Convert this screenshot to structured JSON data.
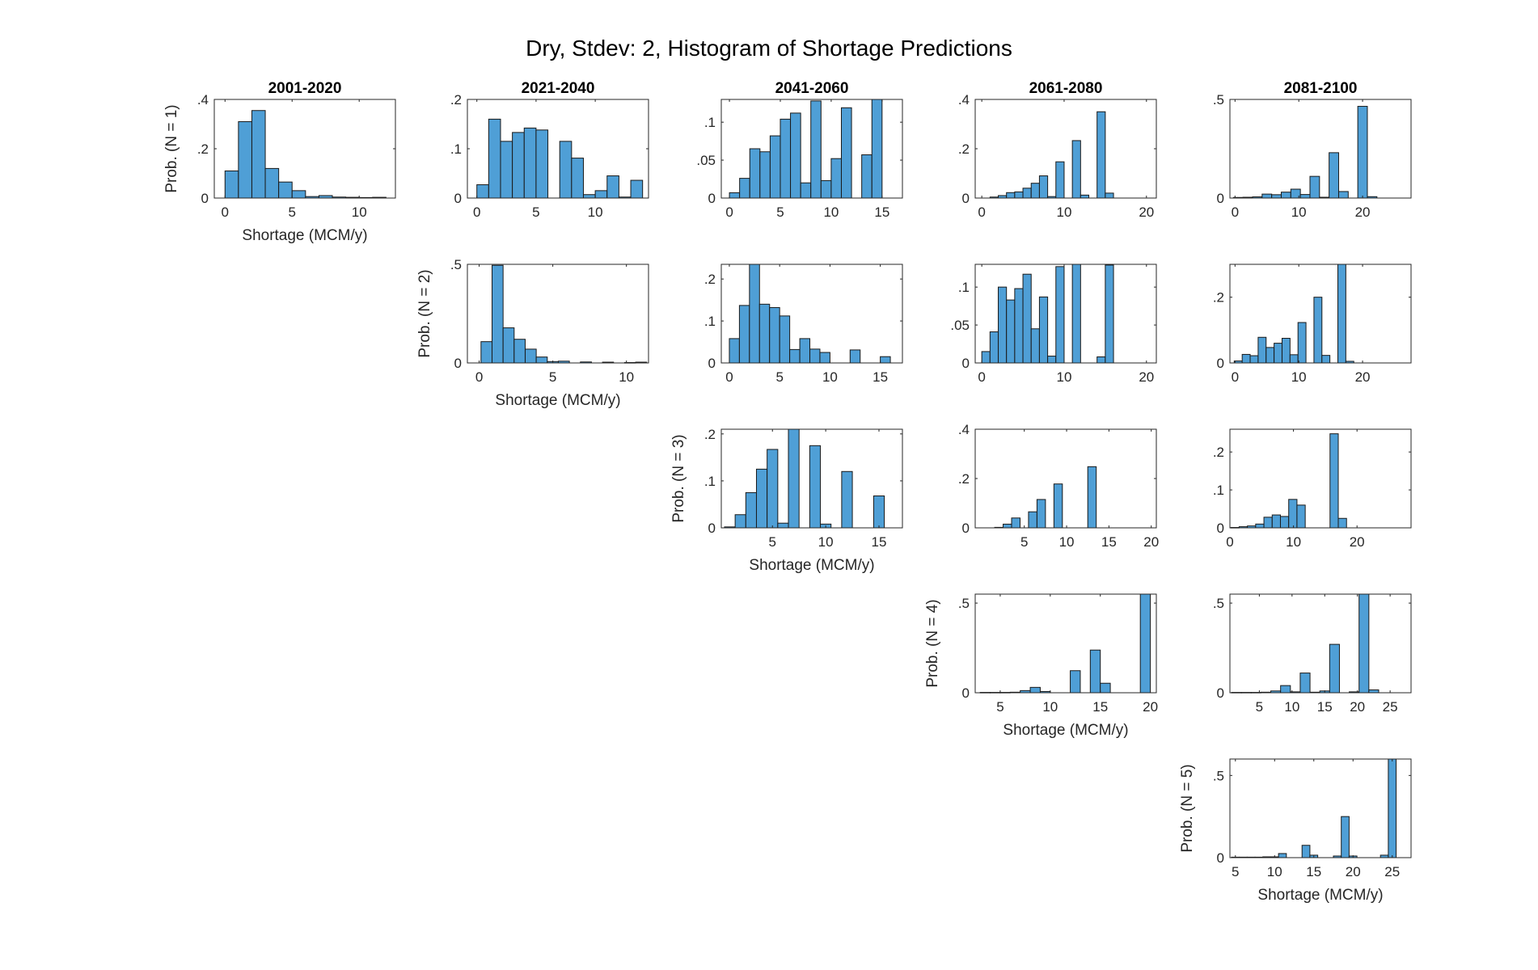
{
  "figure": {
    "title": "Dry, Stdev: 2, Histogram of Shortage Predictions",
    "bar_color": "#4f9fd6",
    "bar_edge": "#1a1a1a"
  },
  "chart_data": [
    {
      "type": "bar",
      "title": "2001-2020",
      "xlabel": "Shortage (MCM/y)",
      "ylabel": "Prob. (N = 1)",
      "xlim": [
        -0.8,
        12.7
      ],
      "ylim": [
        0,
        0.4
      ],
      "xticks": [
        0,
        5,
        10
      ],
      "yticks": [
        0,
        0.2,
        0.4
      ],
      "x": [
        0.5,
        1.5,
        2.5,
        3.5,
        4.5,
        5.5,
        6.5,
        7.5,
        8.5,
        9.5,
        10.5,
        11.5
      ],
      "values": [
        0.11,
        0.31,
        0.355,
        0.12,
        0.065,
        0.03,
        0.006,
        0.01,
        0.004,
        0.003,
        0.002,
        0.003
      ]
    },
    {
      "type": "bar",
      "title": "2021-2040",
      "xlabel": "",
      "ylabel": "",
      "xlim": [
        -0.8,
        14.5
      ],
      "ylim": [
        0,
        0.2
      ],
      "xticks": [
        0,
        5,
        10
      ],
      "yticks": [
        0,
        0.1,
        0.2
      ],
      "x": [
        0.5,
        1.5,
        2.5,
        3.5,
        4.5,
        5.5,
        6.5,
        7.5,
        8.5,
        9.5,
        10.5,
        11.5,
        12.5,
        13.5
      ],
      "values": [
        0.027,
        0.16,
        0.115,
        0.133,
        0.142,
        0.138,
        0.0,
        0.115,
        0.081,
        0.007,
        0.015,
        0.045,
        0.002,
        0.036
      ]
    },
    {
      "type": "bar",
      "title": "2041-2060",
      "xlabel": "",
      "ylabel": "",
      "xlim": [
        -0.8,
        17.0
      ],
      "ylim": [
        0,
        0.13
      ],
      "xticks": [
        0,
        5,
        10,
        15
      ],
      "yticks": [
        0,
        0.05,
        0.1
      ],
      "x": [
        0.5,
        1.5,
        2.5,
        3.5,
        4.5,
        5.5,
        6.5,
        7.5,
        8.5,
        9.5,
        10.5,
        11.5,
        12.5,
        13.5,
        14.5,
        15.5,
        16.5
      ],
      "values": [
        0.007,
        0.026,
        0.065,
        0.061,
        0.082,
        0.104,
        0.112,
        0.02,
        0.128,
        0.023,
        0.052,
        0.119,
        0.0,
        0.057,
        0.134,
        0.0,
        0.0
      ]
    },
    {
      "type": "bar",
      "title": "2061-2080",
      "xlabel": "",
      "ylabel": "",
      "xlim": [
        -0.8,
        21.2
      ],
      "ylim": [
        0,
        0.4
      ],
      "xticks": [
        0,
        10,
        20
      ],
      "yticks": [
        0,
        0.2,
        0.4
      ],
      "x": [
        0.5,
        1.5,
        2.5,
        3.5,
        4.5,
        5.5,
        6.5,
        7.5,
        8.5,
        9.5,
        10.5,
        11.5,
        12.5,
        13.5,
        14.5,
        15.5,
        16.5,
        17.5,
        18.5,
        19.5
      ],
      "values": [
        0.0,
        0.004,
        0.01,
        0.022,
        0.025,
        0.04,
        0.06,
        0.09,
        0.006,
        0.147,
        0.0,
        0.233,
        0.012,
        0.0,
        0.35,
        0.02,
        0.0,
        0.0,
        0.0,
        0.0
      ]
    },
    {
      "type": "bar",
      "title": "2081-2100",
      "xlabel": "",
      "ylabel": "",
      "xlim": [
        -0.8,
        27.6
      ],
      "ylim": [
        0,
        0.5
      ],
      "xticks": [
        0,
        10,
        20
      ],
      "yticks": [
        0,
        0.5
      ],
      "x": [
        0.5,
        2.0,
        3.5,
        5.0,
        6.5,
        8.0,
        9.5,
        11.0,
        12.5,
        14.0,
        15.5,
        17.0,
        18.5,
        20.0,
        21.5,
        23.0,
        24.5,
        26.0
      ],
      "values": [
        0.003,
        0.004,
        0.006,
        0.02,
        0.017,
        0.03,
        0.045,
        0.018,
        0.11,
        0.004,
        0.23,
        0.033,
        0.0,
        0.465,
        0.007,
        0.0,
        0.0,
        0.0
      ]
    },
    {
      "type": "bar",
      "title": "",
      "xlabel": "Shortage (MCM/y)",
      "ylabel": "Prob. (N = 2)",
      "xlim": [
        -0.8,
        11.5
      ],
      "ylim": [
        0,
        0.5
      ],
      "xticks": [
        0,
        5,
        10
      ],
      "yticks": [
        0,
        0.5
      ],
      "x": [
        0.5,
        1.25,
        2.0,
        2.75,
        3.5,
        4.25,
        5.0,
        5.75,
        6.5,
        7.25,
        8.0,
        8.75,
        9.5,
        10.25,
        11.0
      ],
      "values": [
        0.108,
        0.495,
        0.178,
        0.12,
        0.07,
        0.03,
        0.007,
        0.009,
        0.0,
        0.005,
        0.0,
        0.004,
        0.0,
        0.002,
        0.004
      ]
    },
    {
      "type": "bar",
      "title": "",
      "xlabel": "",
      "ylabel": "",
      "xlim": [
        -0.8,
        17.2
      ],
      "ylim": [
        0,
        0.235
      ],
      "xticks": [
        0,
        5,
        10,
        15
      ],
      "yticks": [
        0,
        0.1,
        0.2
      ],
      "x": [
        0.5,
        1.5,
        2.5,
        3.5,
        4.5,
        5.5,
        6.5,
        7.5,
        8.5,
        9.5,
        10.5,
        11.5,
        12.5,
        13.5,
        14.5,
        15.5,
        16.5
      ],
      "values": [
        0.058,
        0.137,
        0.236,
        0.14,
        0.132,
        0.112,
        0.032,
        0.058,
        0.033,
        0.025,
        0.0,
        0.0,
        0.031,
        0.0,
        0.0,
        0.015,
        0.0
      ]
    },
    {
      "type": "bar",
      "title": "",
      "xlabel": "",
      "ylabel": "",
      "xlim": [
        -0.8,
        21.2
      ],
      "ylim": [
        0,
        0.13
      ],
      "xticks": [
        0,
        10,
        20
      ],
      "yticks": [
        0,
        0.05,
        0.1
      ],
      "x": [
        0.5,
        1.5,
        2.5,
        3.5,
        4.5,
        5.5,
        6.5,
        7.5,
        8.5,
        9.5,
        10.5,
        11.5,
        12.5,
        13.5,
        14.5,
        15.5,
        16.5,
        17.5,
        18.5,
        19.5
      ],
      "values": [
        0.015,
        0.041,
        0.1,
        0.083,
        0.098,
        0.117,
        0.045,
        0.087,
        0.009,
        0.127,
        0.0,
        0.132,
        0.0,
        0.0,
        0.008,
        0.129,
        0.0,
        0.0,
        0.0,
        0.0
      ]
    },
    {
      "type": "bar",
      "title": "",
      "xlabel": "",
      "ylabel": "",
      "xlim": [
        -0.8,
        27.6
      ],
      "ylim": [
        0,
        0.3
      ],
      "xticks": [
        0,
        10,
        20
      ],
      "yticks": [
        0,
        0.2
      ],
      "x": [
        0.5,
        1.75,
        3.0,
        4.25,
        5.5,
        6.75,
        8.0,
        9.25,
        10.5,
        11.75,
        13.0,
        14.25,
        15.5,
        16.75,
        18.0,
        19.25,
        20.5,
        21.75,
        23.0,
        24.25,
        25.5,
        26.75
      ],
      "values": [
        0.006,
        0.026,
        0.022,
        0.078,
        0.047,
        0.06,
        0.075,
        0.025,
        0.123,
        0.0,
        0.2,
        0.023,
        0.0,
        0.31,
        0.005,
        0.0,
        0.0,
        0.0,
        0.0,
        0.0,
        0.0,
        0.0
      ]
    },
    {
      "type": "bar",
      "title": "",
      "xlabel": "Shortage (MCM/y)",
      "ylabel": "Prob. (N = 3)",
      "xlim": [
        0.2,
        17.2
      ],
      "ylim": [
        0,
        0.21
      ],
      "xticks": [
        5,
        10,
        15
      ],
      "yticks": [
        0,
        0.1,
        0.2
      ],
      "x": [
        1.0,
        2.0,
        3.0,
        4.0,
        5.0,
        6.0,
        7.0,
        8.0,
        9.0,
        10.0,
        11.0,
        12.0,
        13.0,
        14.0,
        15.0,
        16.0
      ],
      "values": [
        0.002,
        0.028,
        0.075,
        0.125,
        0.167,
        0.01,
        0.213,
        0.0,
        0.175,
        0.008,
        0.0,
        0.12,
        0.0,
        0.0,
        0.068,
        0.0
      ]
    },
    {
      "type": "bar",
      "title": "",
      "xlabel": "",
      "ylabel": "",
      "xlim": [
        -0.8,
        20.6
      ],
      "ylim": [
        0,
        0.4
      ],
      "xticks": [
        5,
        10,
        15,
        20
      ],
      "yticks": [
        0,
        0.2,
        0.4
      ],
      "x": [
        1.0,
        2.0,
        3.0,
        4.0,
        5.0,
        6.0,
        7.0,
        8.0,
        9.0,
        10.0,
        11.0,
        12.0,
        13.0,
        14.0,
        15.0,
        16.0,
        17.0,
        18.0,
        19.0,
        20.0
      ],
      "values": [
        0.0,
        0.002,
        0.015,
        0.04,
        0.0,
        0.065,
        0.115,
        0.0,
        0.178,
        0.0,
        0.0,
        0.0,
        0.248,
        0.0,
        0.0,
        0.0,
        0.0,
        0.0,
        0.0,
        0.0
      ]
    },
    {
      "type": "bar",
      "title": "",
      "xlabel": "",
      "ylabel": "",
      "xlim": [
        0,
        28.5
      ],
      "ylim": [
        0,
        0.26
      ],
      "xticks": [
        0,
        10,
        20
      ],
      "yticks": [
        0,
        0.1,
        0.2
      ],
      "x": [
        0.8,
        2.1,
        3.4,
        4.7,
        6.0,
        7.3,
        8.6,
        9.9,
        11.2,
        12.5,
        13.8,
        15.1,
        16.4,
        17.7,
        19.0,
        20.3,
        21.6,
        22.9,
        24.2,
        25.5,
        26.8,
        28.1
      ],
      "values": [
        0.001,
        0.003,
        0.005,
        0.01,
        0.028,
        0.034,
        0.03,
        0.075,
        0.06,
        0.0,
        0.0,
        0.0,
        0.248,
        0.025,
        0.0,
        0.0,
        0.0,
        0.0,
        0.0,
        0.0,
        0.0,
        0.0
      ]
    },
    {
      "type": "bar",
      "title": "",
      "xlabel": "Shortage (MCM/y)",
      "ylabel": "Prob. (N = 4)",
      "xlim": [
        2.5,
        20.6
      ],
      "ylim": [
        0,
        0.55
      ],
      "xticks": [
        5,
        10,
        15,
        20
      ],
      "yticks": [
        0,
        0.5
      ],
      "x": [
        3.5,
        4.5,
        5.5,
        6.5,
        7.5,
        8.5,
        9.5,
        10.5,
        11.5,
        12.5,
        13.5,
        14.5,
        15.5,
        16.5,
        17.5,
        18.5,
        19.5
      ],
      "values": [
        0.002,
        0.002,
        0.002,
        0.003,
        0.012,
        0.03,
        0.007,
        0.0,
        0.0,
        0.123,
        0.0,
        0.238,
        0.053,
        0.0,
        0.0,
        0.0,
        0.56
      ]
    },
    {
      "type": "bar",
      "title": "",
      "xlabel": "",
      "ylabel": "",
      "xlim": [
        0.5,
        28.2
      ],
      "ylim": [
        0,
        0.55
      ],
      "xticks": [
        5,
        10,
        15,
        20,
        25
      ],
      "yticks": [
        0,
        0.5
      ],
      "x": [
        1.5,
        3.0,
        4.5,
        6.0,
        7.5,
        9.0,
        10.5,
        12.0,
        13.5,
        15.0,
        16.5,
        18.0,
        19.5,
        21.0,
        22.5,
        24.0,
        25.5,
        27.0
      ],
      "values": [
        0.002,
        0.002,
        0.002,
        0.003,
        0.01,
        0.04,
        0.005,
        0.11,
        0.003,
        0.01,
        0.27,
        0.0,
        0.005,
        0.55,
        0.016,
        0.0,
        0.0,
        0.0
      ]
    },
    {
      "type": "bar",
      "title": "",
      "xlabel": "Shortage (MCM/y)",
      "ylabel": "Prob. (N = 5)",
      "xlim": [
        4.3,
        27.4
      ],
      "ylim": [
        0,
        0.6
      ],
      "xticks": [
        5,
        10,
        15,
        20,
        25
      ],
      "yticks": [
        0,
        0.5
      ],
      "x": [
        5.0,
        6.0,
        7.0,
        8.0,
        9.0,
        10.0,
        11.0,
        12.0,
        13.0,
        14.0,
        15.0,
        16.0,
        17.0,
        18.0,
        19.0,
        20.0,
        21.0,
        22.0,
        23.0,
        24.0,
        25.0,
        26.0
      ],
      "values": [
        0.003,
        0.003,
        0.003,
        0.003,
        0.005,
        0.005,
        0.025,
        0.0,
        0.0,
        0.075,
        0.015,
        0.0,
        0.0,
        0.01,
        0.25,
        0.01,
        0.0,
        0.0,
        0.0,
        0.015,
        0.6,
        0.0
      ]
    }
  ]
}
